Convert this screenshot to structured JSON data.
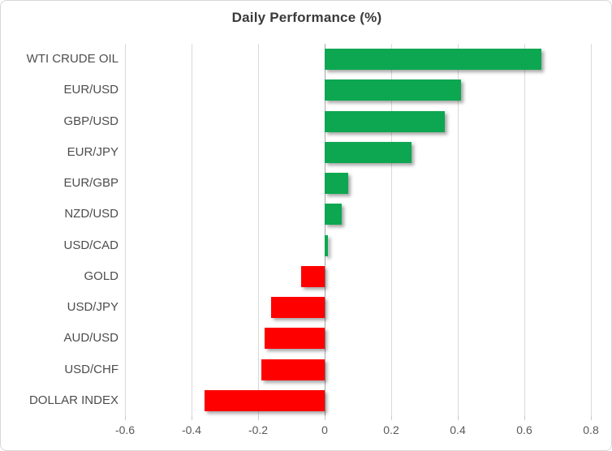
{
  "chart_data": {
    "type": "bar",
    "orientation": "horizontal",
    "title": "Daily Performance (%)",
    "categories": [
      "WTI CRUDE OIL",
      "EUR/USD",
      "GBP/USD",
      "EUR/JPY",
      "EUR/GBP",
      "NZD/USD",
      "USD/CAD",
      "GOLD",
      "USD/JPY",
      "AUD/USD",
      "USD/CHF",
      "DOLLAR INDEX"
    ],
    "values": [
      0.65,
      0.41,
      0.36,
      0.26,
      0.07,
      0.05,
      0.01,
      -0.07,
      -0.16,
      -0.18,
      -0.19,
      -0.36
    ],
    "xlabel": "",
    "ylabel": "",
    "xlim": [
      -0.6,
      0.8
    ],
    "xticks": [
      -0.6,
      -0.4,
      -0.2,
      0,
      0.2,
      0.4,
      0.6,
      0.8
    ],
    "xtick_labels": [
      "-0.6",
      "-0.4",
      "-0.2",
      "0",
      "0.2",
      "0.4",
      "0.6",
      "0.8"
    ],
    "grid": true,
    "legend": false,
    "colors": {
      "positive": "#0CA750",
      "negative": "#FF0000",
      "gridline": "#D9D9D9",
      "zero_axis": "#A6A6A6",
      "title_text": "#3A3A3A",
      "label_text": "#4D4D4D",
      "tick_text": "#595959"
    }
  }
}
